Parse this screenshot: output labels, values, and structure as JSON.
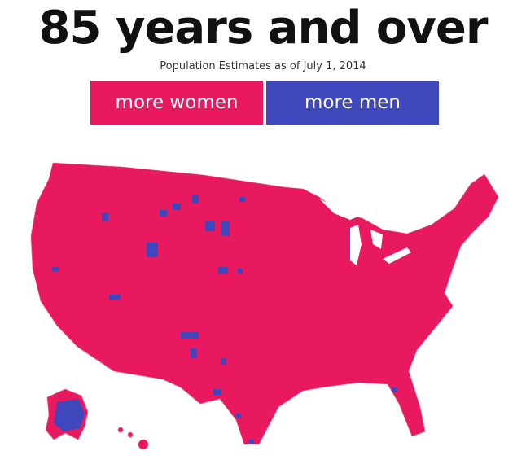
{
  "header": {
    "title": "85 years and over",
    "subtitle": "Population Estimates as of July 1, 2014"
  },
  "legend": {
    "items": [
      "more women",
      "more men"
    ]
  }
}
